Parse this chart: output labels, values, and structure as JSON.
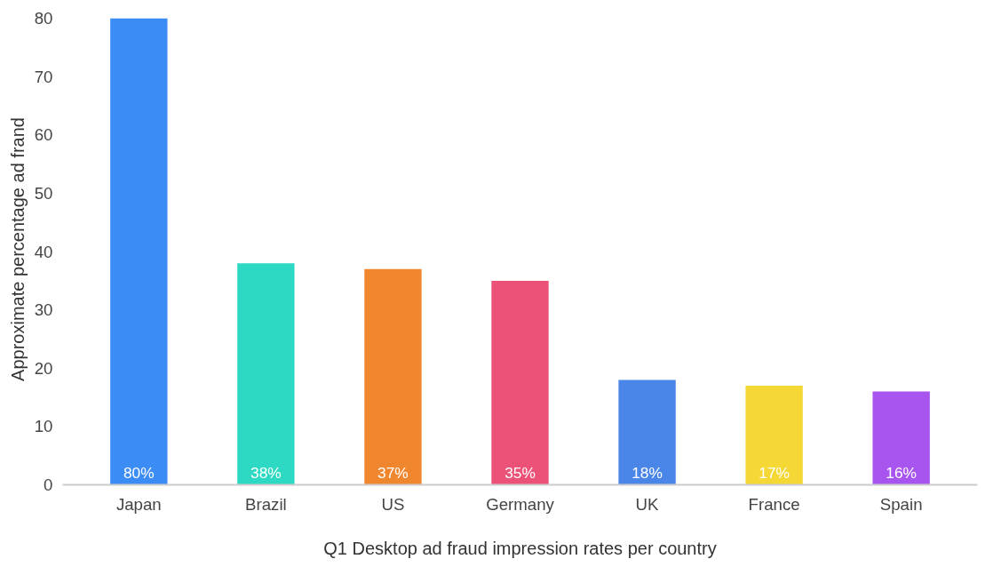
{
  "chart_data": {
    "type": "bar",
    "xlabel": "Q1 Desktop ad fraud impression rates per country",
    "ylabel": "Approximate percentage ad frand",
    "categories": [
      "Japan",
      "Brazil",
      "US",
      "Germany",
      "UK",
      "France",
      "Spain"
    ],
    "values": [
      80,
      38,
      37,
      35,
      18,
      17,
      16
    ],
    "value_labels": [
      "80%",
      "38%",
      "37%",
      "35%",
      "18%",
      "17%",
      "16%"
    ],
    "colors": [
      "#3b8cf5",
      "#2ed9c3",
      "#f0862e",
      "#ec5277",
      "#4a86e8",
      "#f5d736",
      "#a855f0"
    ],
    "ylim": [
      0,
      80
    ],
    "yticks": [
      0,
      10,
      20,
      30,
      40,
      50,
      60,
      70,
      80
    ],
    "grid": false
  }
}
